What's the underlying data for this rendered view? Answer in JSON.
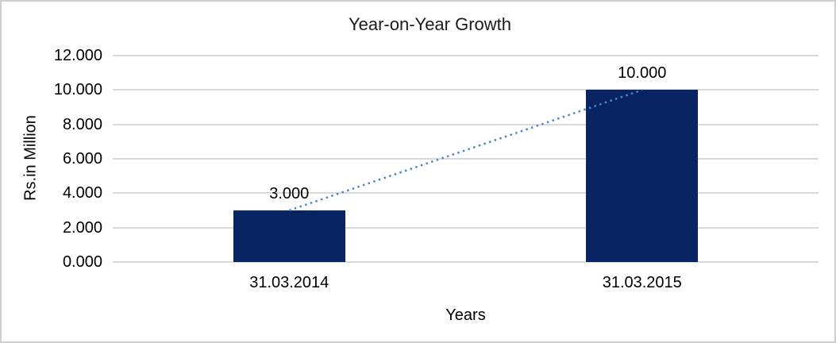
{
  "chart_data": {
    "type": "bar",
    "title": "Year-on-Year Growth",
    "xlabel": "Years",
    "ylabel": "Rs.in Million",
    "categories": [
      "31.03.2014",
      "31.03.2015"
    ],
    "values": [
      3,
      10
    ],
    "data_labels": [
      "3.000",
      "10.000"
    ],
    "ylim": [
      0,
      12
    ],
    "ytick_interval": 2,
    "ytick_labels": [
      "12.000",
      "10.000",
      "8.000",
      "6.000",
      "4.000",
      "2.000",
      "0.000"
    ],
    "grid": true,
    "legend_position": "none",
    "bar_color": "#082462",
    "gridline_color": "#d9d9d9",
    "trendline": {
      "style": "dotted",
      "color": "#4a86c8",
      "connects": [
        "31.03.2014",
        "31.03.2015"
      ]
    }
  }
}
